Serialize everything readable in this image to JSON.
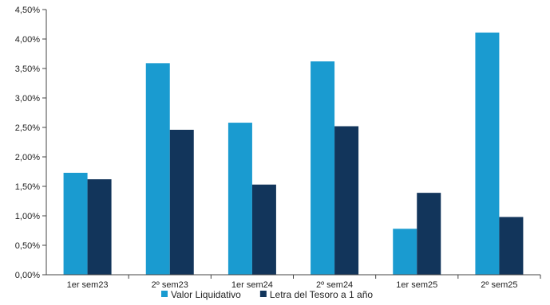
{
  "chart_data": {
    "type": "bar",
    "title": "",
    "xlabel": "",
    "ylabel": "",
    "categories": [
      "1er sem23",
      "2º sem23",
      "1er sem24",
      "2º sem24",
      "1er sem25",
      "2º sem25"
    ],
    "series": [
      {
        "name": "Valor Liquidativo",
        "color": "#1a9bd0",
        "values": [
          1.73,
          3.59,
          2.58,
          3.62,
          0.78,
          4.11
        ]
      },
      {
        "name": "Letra del Tesoro a 1 año",
        "color": "#12355b",
        "values": [
          1.62,
          2.46,
          1.53,
          2.52,
          1.39,
          0.98
        ]
      }
    ],
    "ylim": [
      0,
      4.5
    ],
    "yticks": [
      "0,00%",
      "0,50%",
      "1,00%",
      "1,50%",
      "2,00%",
      "2,50%",
      "3,00%",
      "3,50%",
      "4,00%",
      "4,50%"
    ],
    "grid": false,
    "legend_position": "bottom-center"
  }
}
